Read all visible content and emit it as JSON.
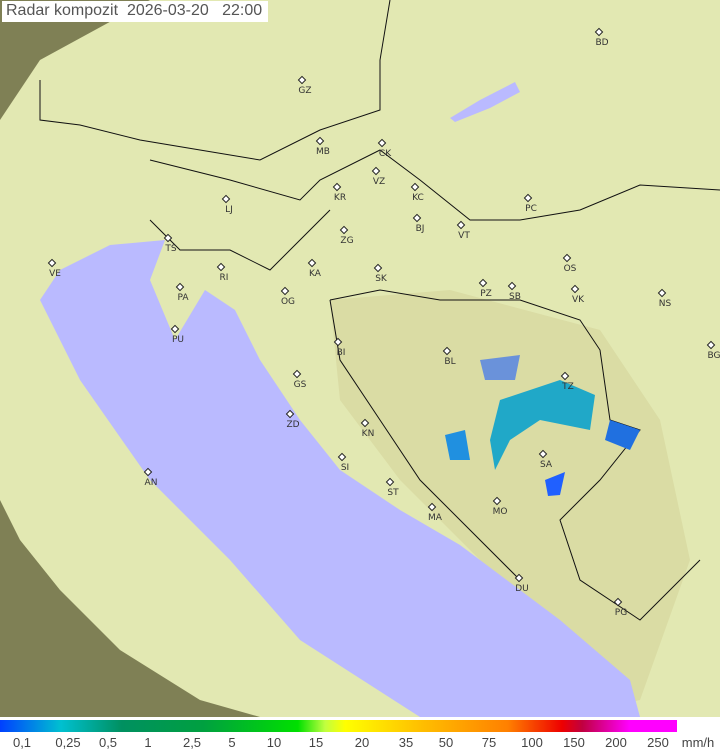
{
  "title": "Radar kompozit  2026-03-20   22:00",
  "legend": {
    "unit": "mm/h",
    "values": [
      "0,1",
      "0,25",
      "0,5",
      "1",
      "2,5",
      "5",
      "10",
      "15",
      "20",
      "35",
      "50",
      "75",
      "100",
      "150",
      "200",
      "250"
    ]
  },
  "cities": [
    "GZ",
    "BD",
    "MB",
    "CK",
    "VZ",
    "KR",
    "KC",
    "PC",
    "LJ",
    "TS",
    "ZG",
    "BJ",
    "VT",
    "RI",
    "KA",
    "SK",
    "OS",
    "VE",
    "PA",
    "OG",
    "PZ",
    "SB",
    "VK",
    "NS",
    "PU",
    "BI",
    "BL",
    "BG",
    "GS",
    "ZD",
    "KN",
    "TZ",
    "SA",
    "SI",
    "AN",
    "ST",
    "MA",
    "MO",
    "DU",
    "PG"
  ],
  "colors": {
    "sea": "#b8b8ff",
    "land": "#e4ecb0",
    "outside": "#8a8a60",
    "radar": "#2060ff"
  }
}
